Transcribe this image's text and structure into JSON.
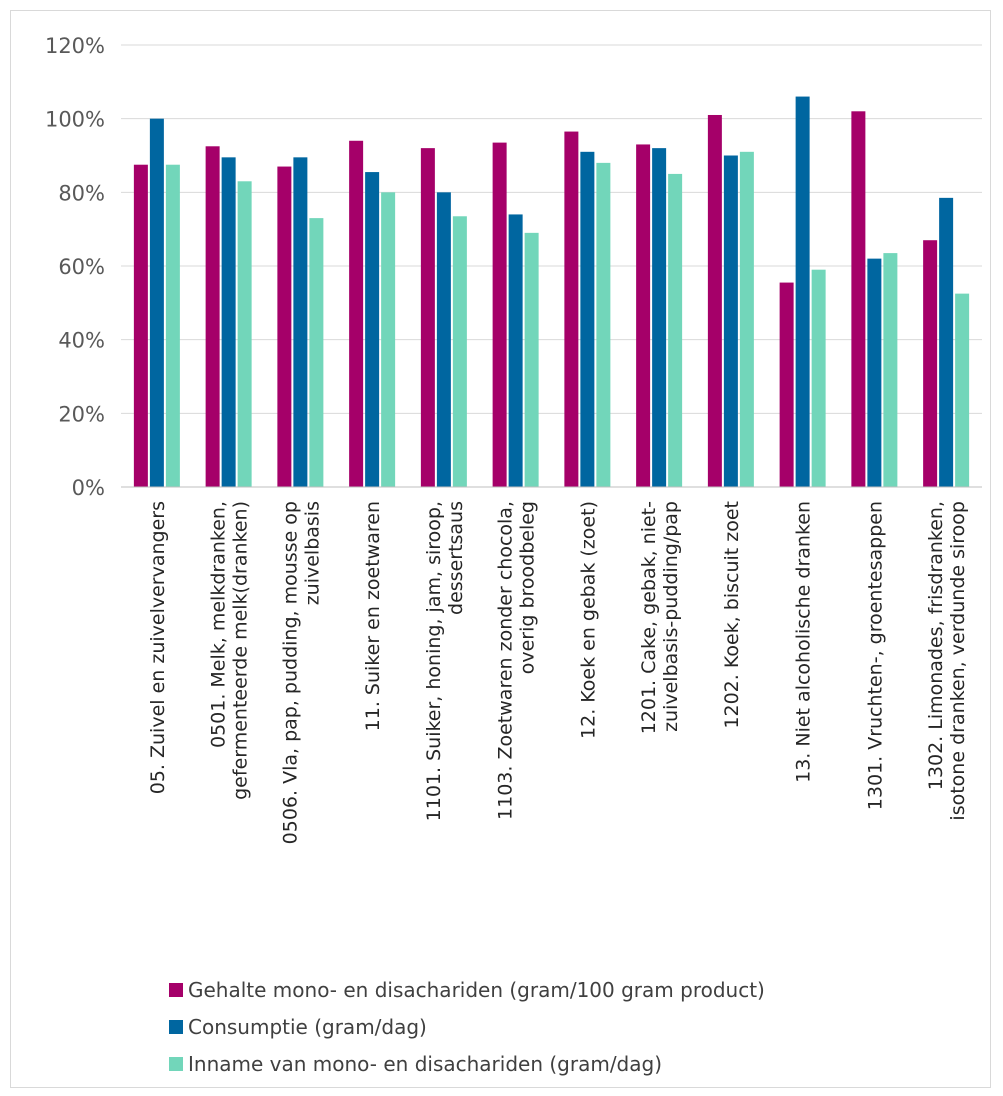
{
  "chart_data": {
    "type": "bar",
    "categories": [
      "05. Zuivel en zuivelvervangers",
      "0501. Melk, melkdranken, gefermenteerde melk(dranken)",
      "0506. Vla, pap, pudding, mousse op zuivelbasis",
      "11. Suiker en zoetwaren",
      "1101. Suiker, honing, jam, siroop, dessertsaus",
      "1103. Zoetwaren zonder chocola, overig broodbeleg",
      "12. Koek en gebak (zoet)",
      "1201. Cake, gebak, niet-zuivelbasis-pudding/pap",
      "1202. Koek, biscuit zoet",
      "13. Niet alcoholische dranken",
      "1301. Vruchten-, groentesappen",
      "1302. Limonades, frisdranken, isotone dranken, verdunde siroop"
    ],
    "category_lines": [
      [
        "05. Zuivel en zuivelvervangers"
      ],
      [
        "0501. Melk, melkdranken,",
        "gefermenteerde melk(dranken)"
      ],
      [
        "0506. Vla, pap, pudding, mousse op",
        "zuivelbasis"
      ],
      [
        "11. Suiker en zoetwaren"
      ],
      [
        "1101. Suiker, honing, jam, siroop,",
        "dessertsaus"
      ],
      [
        "1103. Zoetwaren zonder chocola,",
        "overig broodbeleg"
      ],
      [
        "12. Koek en gebak (zoet)"
      ],
      [
        "1201. Cake, gebak, niet-",
        "zuivelbasis-pudding/pap"
      ],
      [
        "1202. Koek, biscuit zoet"
      ],
      [
        "13. Niet alcoholische dranken"
      ],
      [
        "1301. Vruchten-, groentesappen"
      ],
      [
        "1302. Limonades, frisdranken,",
        "isotone dranken, verdunde siroop"
      ]
    ],
    "series": [
      {
        "name": "Gehalte mono- en disachariden (gram/100 gram product)",
        "color": "#A50069",
        "values": [
          87.5,
          92.5,
          87,
          94,
          92,
          93.5,
          96.5,
          93,
          101,
          55.5,
          102,
          67
        ]
      },
      {
        "name": "Consumptie (gram/dag)",
        "color": "#0066A0",
        "values": [
          100,
          89.5,
          89.5,
          85.5,
          80,
          74,
          91,
          92,
          90,
          106,
          62,
          78.5
        ]
      },
      {
        "name": "Inname van mono- en disachariden (gram/dag)",
        "color": "#72D6BA",
        "values": [
          87.5,
          83,
          73,
          80,
          73.5,
          69,
          88,
          85,
          91,
          59,
          63.5,
          52.5
        ]
      }
    ],
    "yticks": [
      "0%",
      "20%",
      "40%",
      "60%",
      "80%",
      "100%",
      "120%"
    ],
    "ylim": [
      0,
      120
    ],
    "grid": true,
    "legend_position": "bottom"
  }
}
